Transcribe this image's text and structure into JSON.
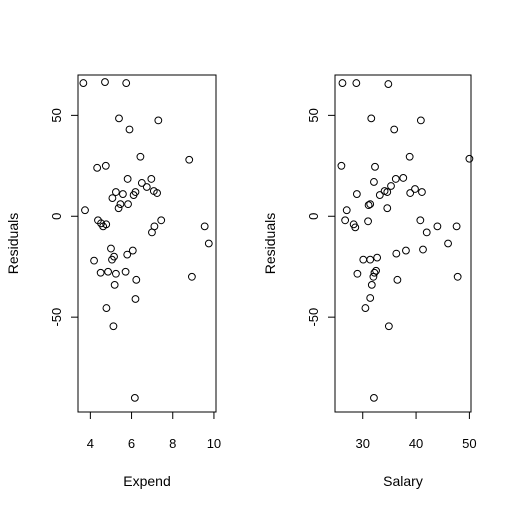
{
  "chart_data": [
    {
      "type": "scatter",
      "xlabel": "Expend",
      "ylabel": "Residuals",
      "xlim": [
        3.4,
        10.1
      ],
      "ylim": [
        -97,
        70
      ],
      "xticks": [
        4,
        6,
        8,
        10
      ],
      "yticks": [
        -50,
        0,
        50
      ],
      "grid": false,
      "points": [
        {
          "x": 3.66,
          "y": 66
        },
        {
          "x": 4.71,
          "y": 66.5
        },
        {
          "x": 5.74,
          "y": 66
        },
        {
          "x": 5.39,
          "y": 48.5
        },
        {
          "x": 7.3,
          "y": 47.5
        },
        {
          "x": 5.9,
          "y": 43
        },
        {
          "x": 6.43,
          "y": 29.5
        },
        {
          "x": 8.8,
          "y": 28
        },
        {
          "x": 4.75,
          "y": 25
        },
        {
          "x": 4.33,
          "y": 24
        },
        {
          "x": 5.81,
          "y": 18.5
        },
        {
          "x": 6.96,
          "y": 18.5
        },
        {
          "x": 6.5,
          "y": 16.5
        },
        {
          "x": 6.74,
          "y": 14.5
        },
        {
          "x": 7.08,
          "y": 12.5
        },
        {
          "x": 5.24,
          "y": 12
        },
        {
          "x": 6.19,
          "y": 12
        },
        {
          "x": 7.24,
          "y": 11.5
        },
        {
          "x": 5.58,
          "y": 11
        },
        {
          "x": 6.1,
          "y": 10.5
        },
        {
          "x": 5.07,
          "y": 9
        },
        {
          "x": 5.46,
          "y": 6
        },
        {
          "x": 5.83,
          "y": 6
        },
        {
          "x": 5.37,
          "y": 4
        },
        {
          "x": 3.74,
          "y": 3
        },
        {
          "x": 4.37,
          "y": -2
        },
        {
          "x": 7.44,
          "y": -2
        },
        {
          "x": 4.52,
          "y": -3.5
        },
        {
          "x": 4.77,
          "y": -4
        },
        {
          "x": 7.11,
          "y": -5
        },
        {
          "x": 4.62,
          "y": -5
        },
        {
          "x": 9.55,
          "y": -5
        },
        {
          "x": 6.99,
          "y": -8
        },
        {
          "x": 9.75,
          "y": -13.5
        },
        {
          "x": 5.0,
          "y": -16
        },
        {
          "x": 6.06,
          "y": -17
        },
        {
          "x": 5.79,
          "y": -19
        },
        {
          "x": 5.15,
          "y": -20
        },
        {
          "x": 5.05,
          "y": -21.5
        },
        {
          "x": 4.18,
          "y": -22
        },
        {
          "x": 4.86,
          "y": -27.5
        },
        {
          "x": 5.71,
          "y": -27.5
        },
        {
          "x": 4.5,
          "y": -28
        },
        {
          "x": 5.24,
          "y": -28.5
        },
        {
          "x": 8.93,
          "y": -30
        },
        {
          "x": 6.23,
          "y": -31.5
        },
        {
          "x": 5.18,
          "y": -34
        },
        {
          "x": 6.19,
          "y": -41
        },
        {
          "x": 4.78,
          "y": -45.5
        },
        {
          "x": 5.12,
          "y": -54.5
        },
        {
          "x": 6.16,
          "y": -90
        }
      ]
    },
    {
      "type": "scatter",
      "xlabel": "Salary",
      "ylabel": "Residuals",
      "xlim": [
        24.8,
        50.3
      ],
      "ylim": [
        -97,
        70
      ],
      "xticks": [
        30,
        40,
        50
      ],
      "yticks": [
        -50,
        0,
        50
      ],
      "grid": false,
      "points": [
        {
          "x": 26.2,
          "y": 66
        },
        {
          "x": 28.8,
          "y": 66
        },
        {
          "x": 34.8,
          "y": 65.5
        },
        {
          "x": 31.6,
          "y": 48.5
        },
        {
          "x": 40.9,
          "y": 47.5
        },
        {
          "x": 35.9,
          "y": 43
        },
        {
          "x": 38.8,
          "y": 29.5
        },
        {
          "x": 50.0,
          "y": 28.5
        },
        {
          "x": 32.3,
          "y": 24.5
        },
        {
          "x": 26.0,
          "y": 25
        },
        {
          "x": 37.6,
          "y": 19
        },
        {
          "x": 36.2,
          "y": 18.5
        },
        {
          "x": 32.1,
          "y": 17
        },
        {
          "x": 35.3,
          "y": 15
        },
        {
          "x": 39.8,
          "y": 13.5
        },
        {
          "x": 34.1,
          "y": 12.5
        },
        {
          "x": 34.6,
          "y": 12
        },
        {
          "x": 41.1,
          "y": 12
        },
        {
          "x": 38.9,
          "y": 11.5
        },
        {
          "x": 28.9,
          "y": 11
        },
        {
          "x": 33.2,
          "y": 10.5
        },
        {
          "x": 31.4,
          "y": 6
        },
        {
          "x": 31.1,
          "y": 5.5
        },
        {
          "x": 34.6,
          "y": 4
        },
        {
          "x": 27.0,
          "y": 3
        },
        {
          "x": 26.7,
          "y": -2
        },
        {
          "x": 40.8,
          "y": -2
        },
        {
          "x": 31.0,
          "y": -2.5
        },
        {
          "x": 28.3,
          "y": -4
        },
        {
          "x": 47.6,
          "y": -5
        },
        {
          "x": 28.6,
          "y": -5.5
        },
        {
          "x": 44.0,
          "y": -5
        },
        {
          "x": 42.0,
          "y": -8
        },
        {
          "x": 46.0,
          "y": -13.5
        },
        {
          "x": 41.3,
          "y": -16.5
        },
        {
          "x": 38.1,
          "y": -17
        },
        {
          "x": 36.3,
          "y": -18.5
        },
        {
          "x": 30.1,
          "y": -21.5
        },
        {
          "x": 32.7,
          "y": -20.5
        },
        {
          "x": 31.4,
          "y": -21.5
        },
        {
          "x": 32.5,
          "y": -27
        },
        {
          "x": 32.2,
          "y": -28
        },
        {
          "x": 32.0,
          "y": -30
        },
        {
          "x": 29.0,
          "y": -28.5
        },
        {
          "x": 47.8,
          "y": -30
        },
        {
          "x": 36.5,
          "y": -31.5
        },
        {
          "x": 31.7,
          "y": -34
        },
        {
          "x": 31.4,
          "y": -40.5
        },
        {
          "x": 30.5,
          "y": -45.5
        },
        {
          "x": 34.9,
          "y": -54.5
        },
        {
          "x": 32.1,
          "y": -90
        }
      ]
    }
  ]
}
